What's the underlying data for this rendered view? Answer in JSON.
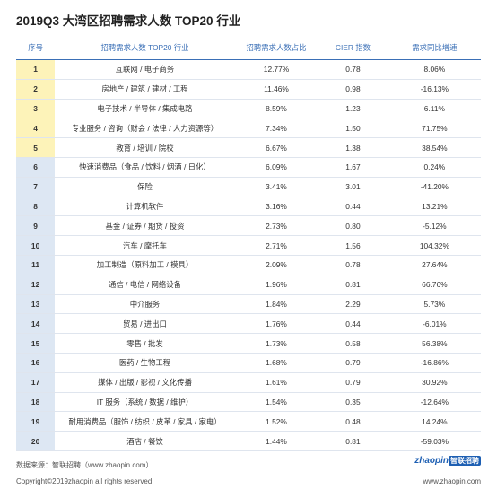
{
  "title": "2019Q3 大湾区招聘需求人数 TOP20 行业",
  "colors": {
    "header_text": "#3a6fb6",
    "top5_highlight": "#fdf3b9",
    "rank_bg": "#dde7f3"
  },
  "chart_data": {
    "type": "table",
    "columns": [
      "序号",
      "招聘需求人数 TOP20 行业",
      "招聘需求人数占比",
      "CIER 指数",
      "需求同比增速"
    ],
    "rows": [
      {
        "rank": "1",
        "industry": "互联网 / 电子商务",
        "share": "12.77%",
        "cier": "0.78",
        "growth": "8.06%"
      },
      {
        "rank": "2",
        "industry": "房地产 / 建筑 / 建材 / 工程",
        "share": "11.46%",
        "cier": "0.98",
        "growth": "-16.13%"
      },
      {
        "rank": "3",
        "industry": "电子技术 / 半导体 / 集成电路",
        "share": "8.59%",
        "cier": "1.23",
        "growth": "6.11%"
      },
      {
        "rank": "4",
        "industry": "专业服务 / 咨询（财会 / 法律 / 人力资源等）",
        "share": "7.34%",
        "cier": "1.50",
        "growth": "71.75%"
      },
      {
        "rank": "5",
        "industry": "教育 / 培训 / 院校",
        "share": "6.67%",
        "cier": "1.38",
        "growth": "38.54%"
      },
      {
        "rank": "6",
        "industry": "快速消费品（食品 / 饮料 / 烟酒 / 日化）",
        "share": "6.09%",
        "cier": "1.67",
        "growth": "0.24%"
      },
      {
        "rank": "7",
        "industry": "保险",
        "share": "3.41%",
        "cier": "3.01",
        "growth": "-41.20%"
      },
      {
        "rank": "8",
        "industry": "计算机软件",
        "share": "3.16%",
        "cier": "0.44",
        "growth": "13.21%"
      },
      {
        "rank": "9",
        "industry": "基金 / 证券 / 期货 / 投资",
        "share": "2.73%",
        "cier": "0.80",
        "growth": "-5.12%"
      },
      {
        "rank": "10",
        "industry": "汽车 / 摩托车",
        "share": "2.71%",
        "cier": "1.56",
        "growth": "104.32%"
      },
      {
        "rank": "11",
        "industry": "加工制造（原料加工 / 模具）",
        "share": "2.09%",
        "cier": "0.78",
        "growth": "27.64%"
      },
      {
        "rank": "12",
        "industry": "通信 / 电信 / 网络设备",
        "share": "1.96%",
        "cier": "0.81",
        "growth": "66.76%"
      },
      {
        "rank": "13",
        "industry": "中介服务",
        "share": "1.84%",
        "cier": "2.29",
        "growth": "5.73%"
      },
      {
        "rank": "14",
        "industry": "贸易 / 进出口",
        "share": "1.76%",
        "cier": "0.44",
        "growth": "-6.01%"
      },
      {
        "rank": "15",
        "industry": "零售 / 批发",
        "share": "1.73%",
        "cier": "0.58",
        "growth": "56.38%"
      },
      {
        "rank": "16",
        "industry": "医药 / 生物工程",
        "share": "1.68%",
        "cier": "0.79",
        "growth": "-16.86%"
      },
      {
        "rank": "17",
        "industry": "媒体 / 出版 / 影视 / 文化传播",
        "share": "1.61%",
        "cier": "0.79",
        "growth": "30.92%"
      },
      {
        "rank": "18",
        "industry": "IT 服务（系统 / 数据 / 维护）",
        "share": "1.54%",
        "cier": "0.35",
        "growth": "-12.64%"
      },
      {
        "rank": "19",
        "industry": "耐用消费品（服饰 / 纺织 / 皮革 / 家具 / 家电）",
        "share": "1.52%",
        "cier": "0.48",
        "growth": "14.24%"
      },
      {
        "rank": "20",
        "industry": "酒店 / 餐饮",
        "share": "1.44%",
        "cier": "0.81",
        "growth": "-59.03%"
      }
    ]
  },
  "footer": {
    "source": "数据来源：智联招聘（www.zhaopin.com）",
    "copyright": "Copyright©2019zhaopin all rights reserved",
    "url": "www.zhaopin.com",
    "logo_text": "zhaopin",
    "logo_badge": "智联招聘"
  }
}
